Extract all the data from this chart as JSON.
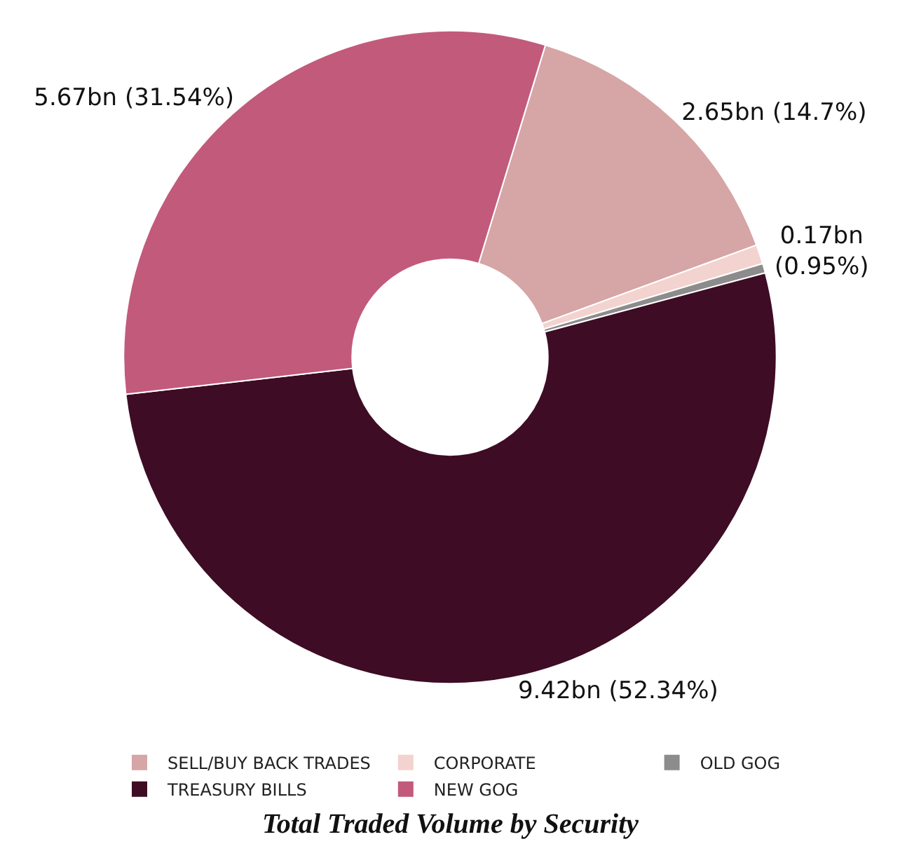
{
  "chart_data": {
    "type": "donut",
    "title": "Total Traded Volume by Security",
    "categories": [
      "SELL/BUY BACK TRADES",
      "CORPORATE",
      "OLD GOG",
      "TREASURY BILLS",
      "NEW GOG"
    ],
    "values": [
      14.7,
      0.95,
      0.47,
      52.34,
      31.54
    ],
    "value_labels": [
      "2.65bn (14.7%)",
      "0.17bn\n(0.95%)",
      null,
      "9.42bn (52.34%)",
      "5.67bn (31.54%)"
    ],
    "colors": [
      "#d6a5a5",
      "#f3d3cf",
      "#8c8c8c",
      "#3e0c24",
      "#c25a7c"
    ],
    "legend": "bottom"
  }
}
